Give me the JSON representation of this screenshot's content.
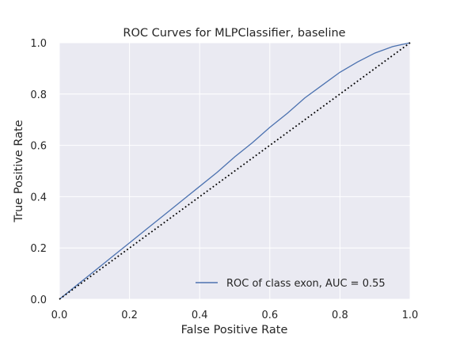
{
  "chart_data": {
    "type": "line",
    "title": "ROC Curves for MLPClassifier, baseline",
    "xlabel": "False Positive Rate",
    "ylabel": "True Positive Rate",
    "xlim": [
      0.0,
      1.0
    ],
    "ylim": [
      0.0,
      1.0
    ],
    "xticks": [
      "0.0",
      "0.2",
      "0.4",
      "0.6",
      "0.8",
      "1.0"
    ],
    "yticks": [
      "0.0",
      "0.2",
      "0.4",
      "0.6",
      "0.8",
      "1.0"
    ],
    "grid": true,
    "legend_position": "lower right",
    "series": [
      {
        "name": "ROC of class exon, AUC = 0.55",
        "color": "#4c72b0",
        "style": "solid",
        "x": [
          0.0,
          0.05,
          0.1,
          0.15,
          0.2,
          0.25,
          0.3,
          0.35,
          0.4,
          0.45,
          0.5,
          0.55,
          0.6,
          0.65,
          0.7,
          0.75,
          0.8,
          0.85,
          0.9,
          0.95,
          1.0
        ],
        "y": [
          0.0,
          0.055,
          0.11,
          0.165,
          0.22,
          0.275,
          0.33,
          0.385,
          0.44,
          0.495,
          0.555,
          0.61,
          0.67,
          0.725,
          0.785,
          0.835,
          0.885,
          0.925,
          0.96,
          0.985,
          1.0
        ]
      },
      {
        "name": "",
        "color": "#000000",
        "style": "dotted",
        "x": [
          0.0,
          1.0
        ],
        "y": [
          0.0,
          1.0
        ]
      }
    ]
  }
}
